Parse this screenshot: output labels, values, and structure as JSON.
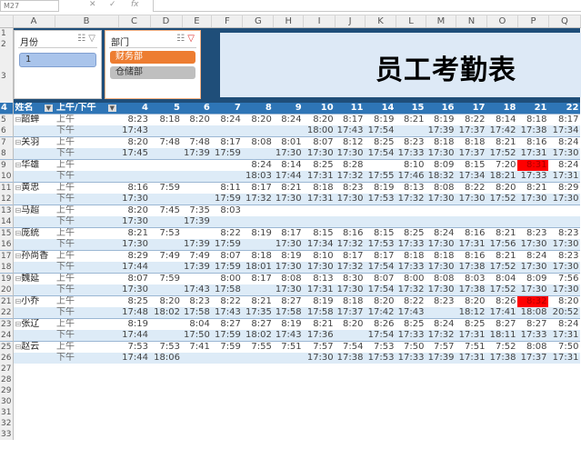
{
  "formula_bar": {
    "name_box": "M27",
    "cancel_icon": "✕",
    "enter_icon": "✓",
    "fx_icon": "fx"
  },
  "columns": [
    "A",
    "B",
    "C",
    "D",
    "E",
    "F",
    "G",
    "H",
    "I",
    "J",
    "K",
    "L",
    "M",
    "N",
    "O",
    "P",
    "Q"
  ],
  "title": "员工考勤表",
  "slicers": [
    {
      "title": "月份",
      "items": [
        {
          "label": "1",
          "state": "selected"
        }
      ]
    },
    {
      "title": "部门",
      "items": [
        {
          "label": "财务部",
          "state": "selected"
        },
        {
          "label": "仓储部",
          "state": "unselected"
        }
      ]
    }
  ],
  "colors": {
    "header": "#2e75b6",
    "band": "#1f4e79",
    "alt_row": "#ddebf7",
    "highlight": "#ff0000",
    "slicer_selected": "#ed7d31"
  },
  "table": {
    "headers": {
      "name": "姓名",
      "half": "上午/下午"
    },
    "days": [
      "4",
      "5",
      "6",
      "7",
      "8",
      "9",
      "10",
      "11",
      "14",
      "15",
      "16",
      "17",
      "18",
      "21",
      "22"
    ],
    "am_label": "上午",
    "pm_label": "下午",
    "rows": [
      {
        "name": "韶蝉",
        "am": [
          "8:23",
          "8:18",
          "8:20",
          "8:24",
          "8:20",
          "8:24",
          "8:20",
          "8:17",
          "8:19",
          "8:21",
          "8:19",
          "8:22",
          "8:14",
          "8:18",
          "8:17"
        ],
        "pm": [
          "17:43",
          "",
          "",
          "",
          "",
          "",
          "18:00",
          "17:43",
          "17:54",
          "",
          "17:39",
          "17:37",
          "17:42",
          "17:38",
          "17:34"
        ]
      },
      {
        "name": "关羽",
        "am": [
          "8:20",
          "7:48",
          "7:48",
          "8:17",
          "8:08",
          "8:01",
          "8:07",
          "8:12",
          "8:25",
          "8:23",
          "8:18",
          "8:18",
          "8:21",
          "8:16",
          "8:24"
        ],
        "pm": [
          "17:45",
          "",
          "17:39",
          "17:59",
          "",
          "17:30",
          "17:30",
          "17:30",
          "17:54",
          "17:33",
          "17:30",
          "17:37",
          "17:52",
          "17:31",
          "17:30"
        ]
      },
      {
        "name": "华雄",
        "am": [
          "",
          "",
          "",
          "",
          "8:24",
          "8:14",
          "8:25",
          "8:28",
          "",
          "8:10",
          "8:09",
          "8:15",
          "7:20",
          "8:31",
          "8:24"
        ],
        "pm": [
          "",
          "",
          "",
          "",
          "18:03",
          "17:44",
          "17:31",
          "17:32",
          "17:55",
          "17:46",
          "18:32",
          "17:34",
          "18:21",
          "17:33",
          "17:31"
        ],
        "highlight_am": [
          13
        ]
      },
      {
        "name": "黄忠",
        "am": [
          "8:16",
          "7:59",
          "",
          "8:11",
          "8:17",
          "8:21",
          "8:18",
          "8:23",
          "8:19",
          "8:13",
          "8:08",
          "8:22",
          "8:20",
          "8:21",
          "8:29"
        ],
        "pm": [
          "17:30",
          "",
          "",
          "17:59",
          "17:32",
          "17:30",
          "17:31",
          "17:30",
          "17:53",
          "17:32",
          "17:30",
          "17:30",
          "17:52",
          "17:30",
          "17:30"
        ]
      },
      {
        "name": "马超",
        "am": [
          "8:20",
          "7:45",
          "7:35",
          "8:03",
          "",
          "",
          "",
          "",
          "",
          "",
          "",
          "",
          "",
          "",
          ""
        ],
        "pm": [
          "17:30",
          "",
          "17:39",
          "",
          "",
          "",
          "",
          "",
          "",
          "",
          "",
          "",
          "",
          "",
          ""
        ]
      },
      {
        "name": "庞统",
        "am": [
          "8:21",
          "7:53",
          "",
          "8:22",
          "8:19",
          "8:17",
          "8:15",
          "8:16",
          "8:15",
          "8:25",
          "8:24",
          "8:16",
          "8:21",
          "8:23",
          "8:23"
        ],
        "pm": [
          "17:30",
          "",
          "17:39",
          "17:59",
          "",
          "17:30",
          "17:34",
          "17:32",
          "17:53",
          "17:33",
          "17:30",
          "17:31",
          "17:56",
          "17:30",
          "17:30"
        ]
      },
      {
        "name": "孙尚香",
        "am": [
          "8:29",
          "7:49",
          "7:49",
          "8:07",
          "8:18",
          "8:19",
          "8:10",
          "8:17",
          "8:17",
          "8:18",
          "8:18",
          "8:16",
          "8:21",
          "8:24",
          "8:23"
        ],
        "pm": [
          "17:44",
          "",
          "17:39",
          "17:59",
          "18:01",
          "17:30",
          "17:30",
          "17:32",
          "17:54",
          "17:33",
          "17:30",
          "17:38",
          "17:52",
          "17:30",
          "17:30"
        ]
      },
      {
        "name": "魏延",
        "am": [
          "8:07",
          "7:59",
          "",
          "8:00",
          "8:17",
          "8:08",
          "8:13",
          "8:30",
          "8:07",
          "8:00",
          "8:08",
          "8:03",
          "8:04",
          "8:09",
          "7:56"
        ],
        "pm": [
          "17:30",
          "",
          "17:43",
          "17:58",
          "",
          "17:30",
          "17:31",
          "17:30",
          "17:54",
          "17:32",
          "17:30",
          "17:38",
          "17:52",
          "17:30",
          "17:30"
        ]
      },
      {
        "name": "小乔",
        "am": [
          "8:25",
          "8:20",
          "8:23",
          "8:22",
          "8:21",
          "8:27",
          "8:19",
          "8:18",
          "8:20",
          "8:22",
          "8:23",
          "8:20",
          "8:26",
          "8:32",
          "8:20"
        ],
        "pm": [
          "17:48",
          "18:02",
          "17:58",
          "17:43",
          "17:35",
          "17:58",
          "17:58",
          "17:37",
          "17:42",
          "17:43",
          "",
          "18:12",
          "17:41",
          "18:08",
          "20:52"
        ],
        "highlight_am": [
          13
        ]
      },
      {
        "name": "张辽",
        "am": [
          "8:19",
          "",
          "8:04",
          "8:27",
          "8:27",
          "8:19",
          "8:21",
          "8:20",
          "8:26",
          "8:25",
          "8:24",
          "8:25",
          "8:27",
          "8:27",
          "8:24"
        ],
        "pm": [
          "17:44",
          "",
          "17:50",
          "17:59",
          "18:02",
          "17:43",
          "17:36",
          "",
          "17:54",
          "17:33",
          "17:32",
          "17:31",
          "18:11",
          "17:33",
          "17:31"
        ]
      },
      {
        "name": "赵云",
        "am": [
          "7:53",
          "7:53",
          "7:41",
          "7:59",
          "7:55",
          "7:51",
          "7:57",
          "7:54",
          "7:53",
          "7:50",
          "7:57",
          "7:51",
          "7:52",
          "8:08",
          "7:50"
        ],
        "pm": [
          "17:44",
          "18:06",
          "",
          "",
          "",
          "",
          "17:30",
          "17:38",
          "17:53",
          "17:33",
          "17:39",
          "17:31",
          "17:38",
          "17:37",
          "17:31"
        ]
      }
    ]
  }
}
